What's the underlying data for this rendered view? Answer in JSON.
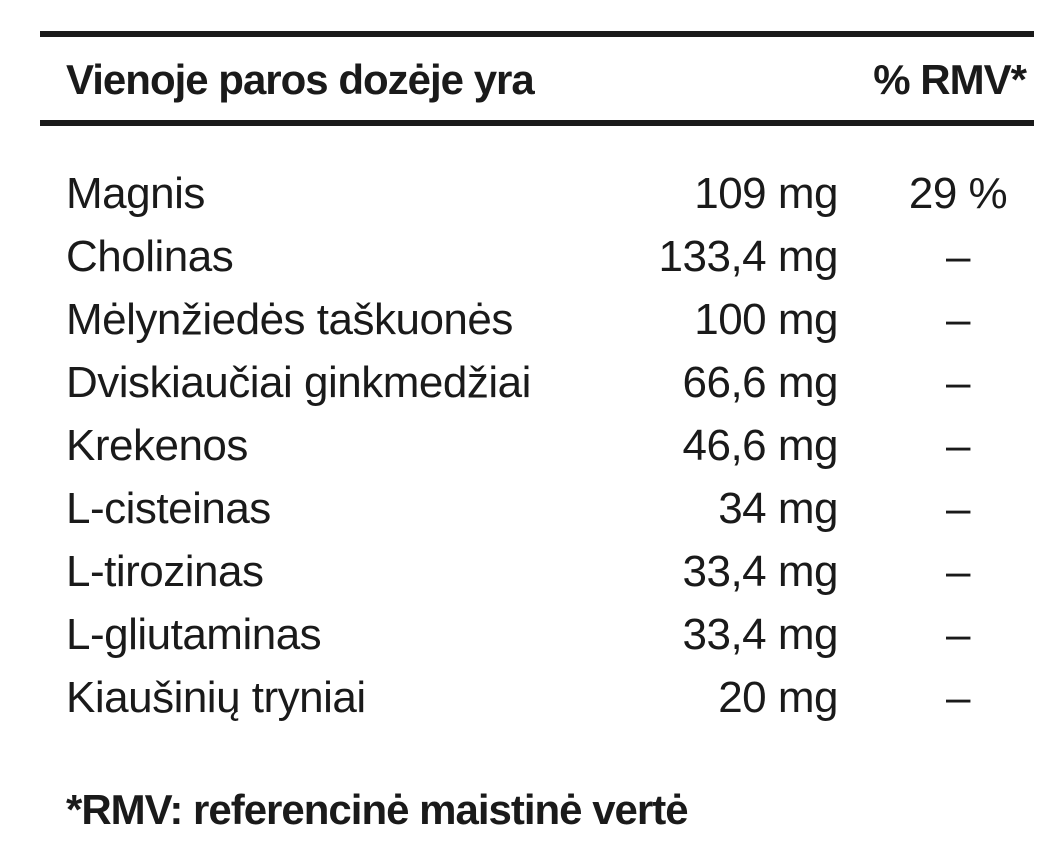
{
  "table": {
    "header": {
      "title": "Vienoje paros dozėje yra",
      "rmv_label": "% RMV*"
    },
    "rows": [
      {
        "name": "Magnis",
        "amount": "109 mg",
        "rmv": "29 %"
      },
      {
        "name": "Cholinas",
        "amount": "133,4 mg",
        "rmv": "–"
      },
      {
        "name": "Mėlynžiedės taškuonės",
        "amount": "100 mg",
        "rmv": "–"
      },
      {
        "name": "Dviskiaučiai ginkmedžiai",
        "amount": "66,6 mg",
        "rmv": "–"
      },
      {
        "name": "Krekenos",
        "amount": "46,6 mg",
        "rmv": "–"
      },
      {
        "name": "L-cisteinas",
        "amount": "34 mg",
        "rmv": "–"
      },
      {
        "name": "L-tirozinas",
        "amount": "33,4 mg",
        "rmv": "–"
      },
      {
        "name": "L-gliutaminas",
        "amount": "33,4 mg",
        "rmv": "–"
      },
      {
        "name": "Kiaušinių tryniai",
        "amount": "20 mg",
        "rmv": "–"
      }
    ],
    "footnote": "*RMV: referencinė maistinė vertė"
  }
}
